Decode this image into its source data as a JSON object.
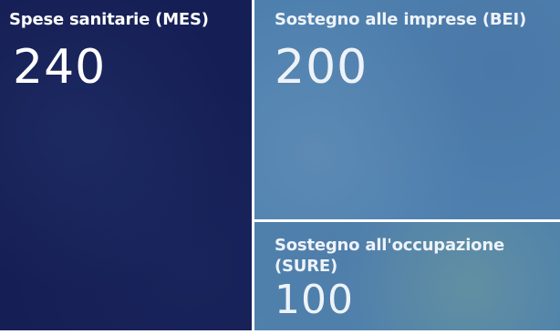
{
  "chart_data": {
    "type": "treemap",
    "categories": [
      "Spese sanitarie (MES)",
      "Sostegno alle imprese (BEI)",
      "Sostegno all'occupazione (SURE)"
    ],
    "values": [
      240,
      200,
      100
    ],
    "items": [
      {
        "label": "Spese sanitarie (MES)",
        "value": "240",
        "color": "#161f55"
      },
      {
        "label": "Sostegno alle imprese (BEI)",
        "value": "200",
        "color": "#4e80ae"
      },
      {
        "label": "Sostegno all'occupazione (SURE)",
        "value": "100",
        "color": "#4f82ac"
      }
    ]
  }
}
